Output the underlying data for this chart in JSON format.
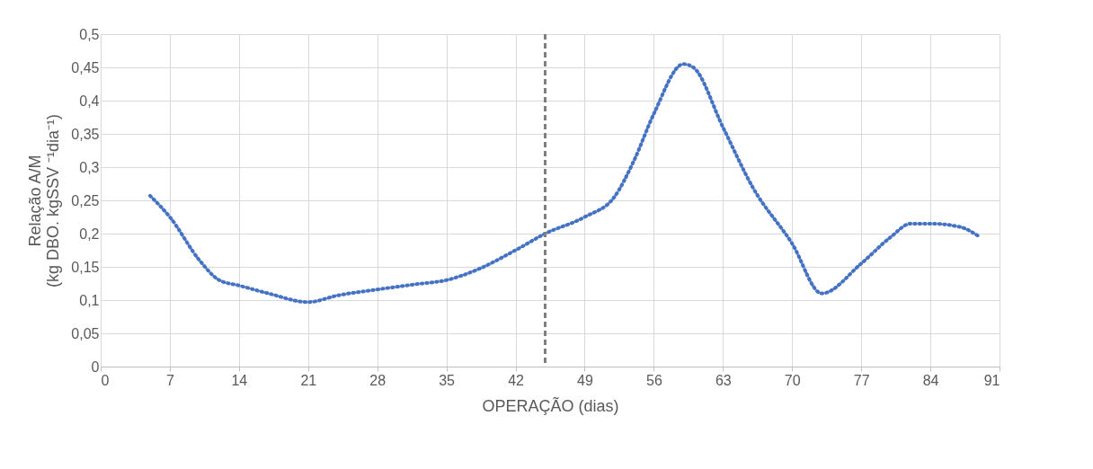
{
  "chart_data": {
    "type": "line",
    "xlabel": "OPERAÇÃO (dias)",
    "ylabel": "Relação A/M\n(kg DBO. kgSSV ⁻¹dia⁻¹)",
    "series": [
      {
        "color": "#4472c4",
        "line_style": "dotted",
        "x": [
          5,
          7,
          10,
          12,
          14,
          17,
          21,
          24,
          28,
          32,
          35,
          38,
          42,
          45,
          49,
          52,
          54,
          56,
          59,
          60,
          63,
          66,
          70,
          73,
          77,
          80,
          82,
          84,
          87,
          89
        ],
        "values": [
          0.257,
          0.225,
          0.16,
          0.13,
          0.122,
          0.11,
          0.097,
          0.107,
          0.116,
          0.124,
          0.13,
          0.145,
          0.175,
          0.2,
          0.225,
          0.255,
          0.31,
          0.38,
          0.455,
          0.45,
          0.36,
          0.27,
          0.185,
          0.11,
          0.155,
          0.195,
          0.215,
          0.215,
          0.21,
          0.195
        ]
      }
    ],
    "xlim": [
      0,
      91
    ],
    "xticks": [
      0,
      7,
      14,
      21,
      28,
      35,
      42,
      49,
      56,
      63,
      70,
      77,
      84,
      91
    ],
    "ylim": [
      0,
      0.5
    ],
    "yticks": [
      {
        "value": 0,
        "label": "0"
      },
      {
        "value": 0.05,
        "label": "0,05"
      },
      {
        "value": 0.1,
        "label": "0,1"
      },
      {
        "value": 0.15,
        "label": "0,15"
      },
      {
        "value": 0.2,
        "label": "0,2"
      },
      {
        "value": 0.25,
        "label": "0,25"
      },
      {
        "value": 0.3,
        "label": "0,3"
      },
      {
        "value": 0.35,
        "label": "0,35"
      },
      {
        "value": 0.4,
        "label": "0,4"
      },
      {
        "value": 0.45,
        "label": "0,45"
      },
      {
        "value": 0.5,
        "label": "0,5"
      }
    ],
    "grid": true,
    "ref_lines": [
      {
        "axis": "x",
        "value": 45,
        "color": "#7f7f7f",
        "line_style": "dashed"
      }
    ]
  }
}
